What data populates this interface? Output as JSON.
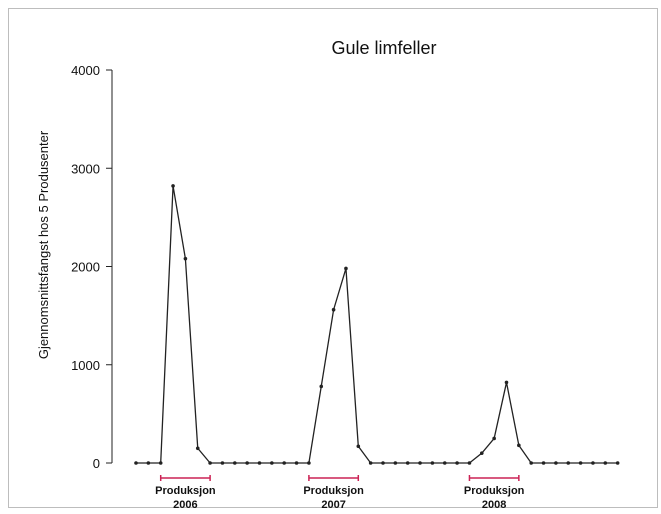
{
  "chart_data": {
    "type": "line",
    "title": "Gule limfeller",
    "xlabel": "",
    "ylabel": "Gjennomsnittsfangst hos 5 Produsenter",
    "ylim": [
      0,
      4000
    ],
    "yticks": [
      "0",
      "1000",
      "2000",
      "3000",
      "4000"
    ],
    "grid": false,
    "series": [
      {
        "values": [
          0,
          0,
          0,
          2820,
          2080,
          150,
          0,
          0,
          0,
          0,
          0,
          0,
          0,
          0,
          0,
          780,
          1560,
          1980,
          170,
          0,
          0,
          0,
          0,
          0,
          0,
          0,
          0,
          0,
          100,
          250,
          820,
          180,
          0,
          0,
          0,
          0,
          0,
          0,
          0,
          0
        ]
      }
    ],
    "periods": [
      {
        "label": "Produksjon",
        "year": "2006",
        "start": 2,
        "end": 6
      },
      {
        "label": "Produksjon",
        "year": "2007",
        "start": 14,
        "end": 18
      },
      {
        "label": "Produksjon",
        "year": "2008",
        "start": 27,
        "end": 31
      }
    ],
    "colors": {
      "line": "#222222",
      "period": "#cc2255"
    }
  }
}
